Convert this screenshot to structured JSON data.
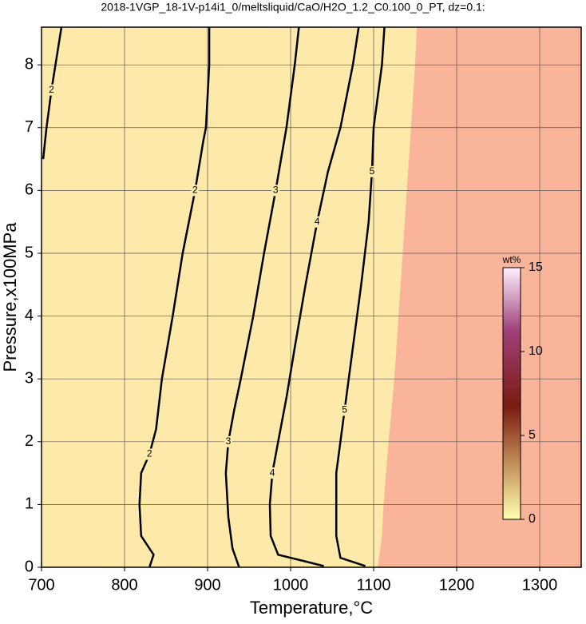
{
  "chart_data": {
    "type": "contour",
    "title": "2018-1VGP_18-1V-p14i1_0/meltsliquid/CaO/H2O_1.2_C0.100_0_PT, dz=0.1:",
    "x_label": "Temperature,°C",
    "y_label": "Pressure,x100MPa",
    "xlim": [
      700,
      1350
    ],
    "ylim": [
      0,
      8.6
    ],
    "xticks": [
      700,
      800,
      900,
      1000,
      1100,
      1200,
      1300
    ],
    "yticks": [
      0,
      1,
      2,
      3,
      4,
      5,
      6,
      7,
      8
    ],
    "grid": true,
    "background_color": "#fde9a9",
    "region": {
      "color": "#f9b49a",
      "x": [
        1105,
        1110,
        1112,
        1118,
        1125,
        1130,
        1135,
        1140,
        1145,
        1150,
        1152
      ],
      "y": [
        0,
        0.5,
        1,
        2,
        3,
        4,
        5,
        6,
        7,
        8,
        8.6
      ]
    },
    "contours": [
      {
        "level": 2,
        "x": [
          830,
          835,
          820,
          818,
          820,
          830,
          838,
          845,
          858,
          870,
          885,
          895,
          898,
          902,
          902
        ],
        "y": [
          0,
          0.2,
          0.5,
          1.0,
          1.5,
          1.8,
          2.2,
          3.0,
          4.0,
          5.0,
          6.0,
          6.8,
          7.0,
          8.0,
          8.6
        ]
      },
      {
        "level": 3,
        "x": [
          938,
          930,
          925,
          922,
          925,
          932,
          940,
          955,
          968,
          982,
          995,
          1005,
          1010
        ],
        "y": [
          0,
          0.3,
          0.8,
          1.5,
          2.0,
          2.5,
          3.0,
          4.0,
          5.0,
          6.0,
          7.0,
          8.0,
          8.6
        ]
      },
      {
        "level": 4,
        "x": [
          1040,
          985,
          976,
          975,
          978,
          985,
          995,
          1005,
          1018,
          1032,
          1045,
          1060,
          1075,
          1082
        ],
        "y": [
          0.02,
          0.2,
          0.5,
          1.0,
          1.5,
          2.0,
          2.7,
          3.5,
          4.5,
          5.5,
          6.3,
          7.0,
          8.0,
          8.6
        ]
      },
      {
        "level": 5,
        "x": [
          1090,
          1060,
          1055,
          1055,
          1065,
          1075,
          1085,
          1094,
          1098,
          1100,
          1110,
          1113
        ],
        "y": [
          0.02,
          0.15,
          0.5,
          1.5,
          2.5,
          3.5,
          4.5,
          5.5,
          6.3,
          7.0,
          8.0,
          8.6
        ]
      },
      {
        "level": 2,
        "x": [
          702,
          706,
          712,
          718,
          724
        ],
        "y": [
          6.5,
          7.0,
          7.6,
          8.1,
          8.6
        ]
      }
    ],
    "colorbar": {
      "label": "wt%",
      "lim": [
        0,
        15
      ],
      "ticks": [
        0,
        5,
        10,
        15
      ]
    }
  }
}
